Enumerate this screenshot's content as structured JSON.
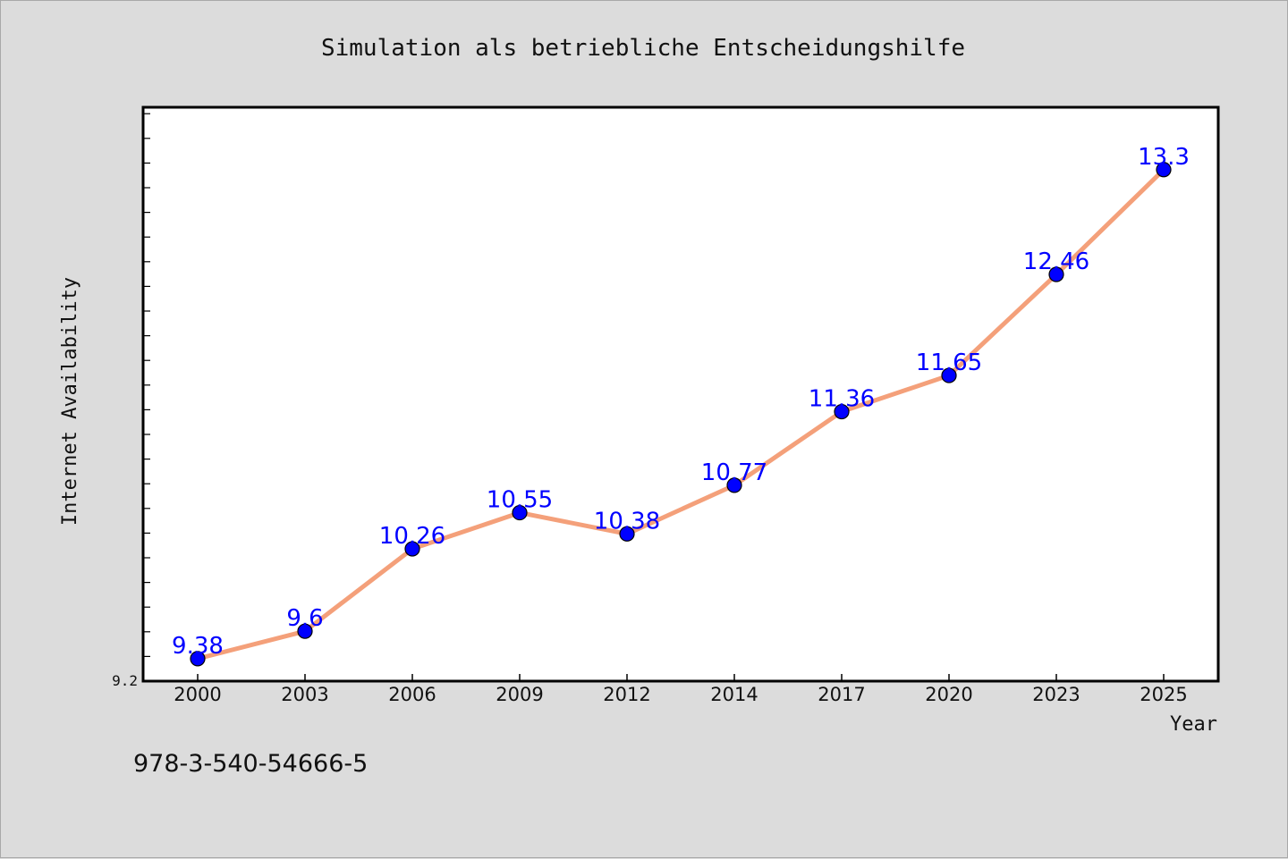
{
  "chart_data": {
    "type": "line",
    "title": "Simulation als betriebliche Entscheidungshilfe",
    "xlabel": "Year",
    "ylabel": "Internet Availability",
    "categories": [
      "2000",
      "2003",
      "2006",
      "2009",
      "2012",
      "2014",
      "2017",
      "2020",
      "2023",
      "2025"
    ],
    "values": [
      9.38,
      9.6,
      10.26,
      10.55,
      10.38,
      10.77,
      11.36,
      11.65,
      12.46,
      13.3
    ],
    "data_labels": [
      "9.38",
      "9.6",
      "10.26",
      "10.55",
      "10.38",
      "10.77",
      "11.36",
      "11.65",
      "12.46",
      "13.3"
    ],
    "ylim": [
      9.2,
      13.8
    ],
    "y_tick_labels": [
      "9.2"
    ],
    "grid": false,
    "legend": "none",
    "line_color": "#f4a07a",
    "marker_color": "#0000ff"
  },
  "footer": {
    "isbn": "978-3-540-54666-5"
  }
}
